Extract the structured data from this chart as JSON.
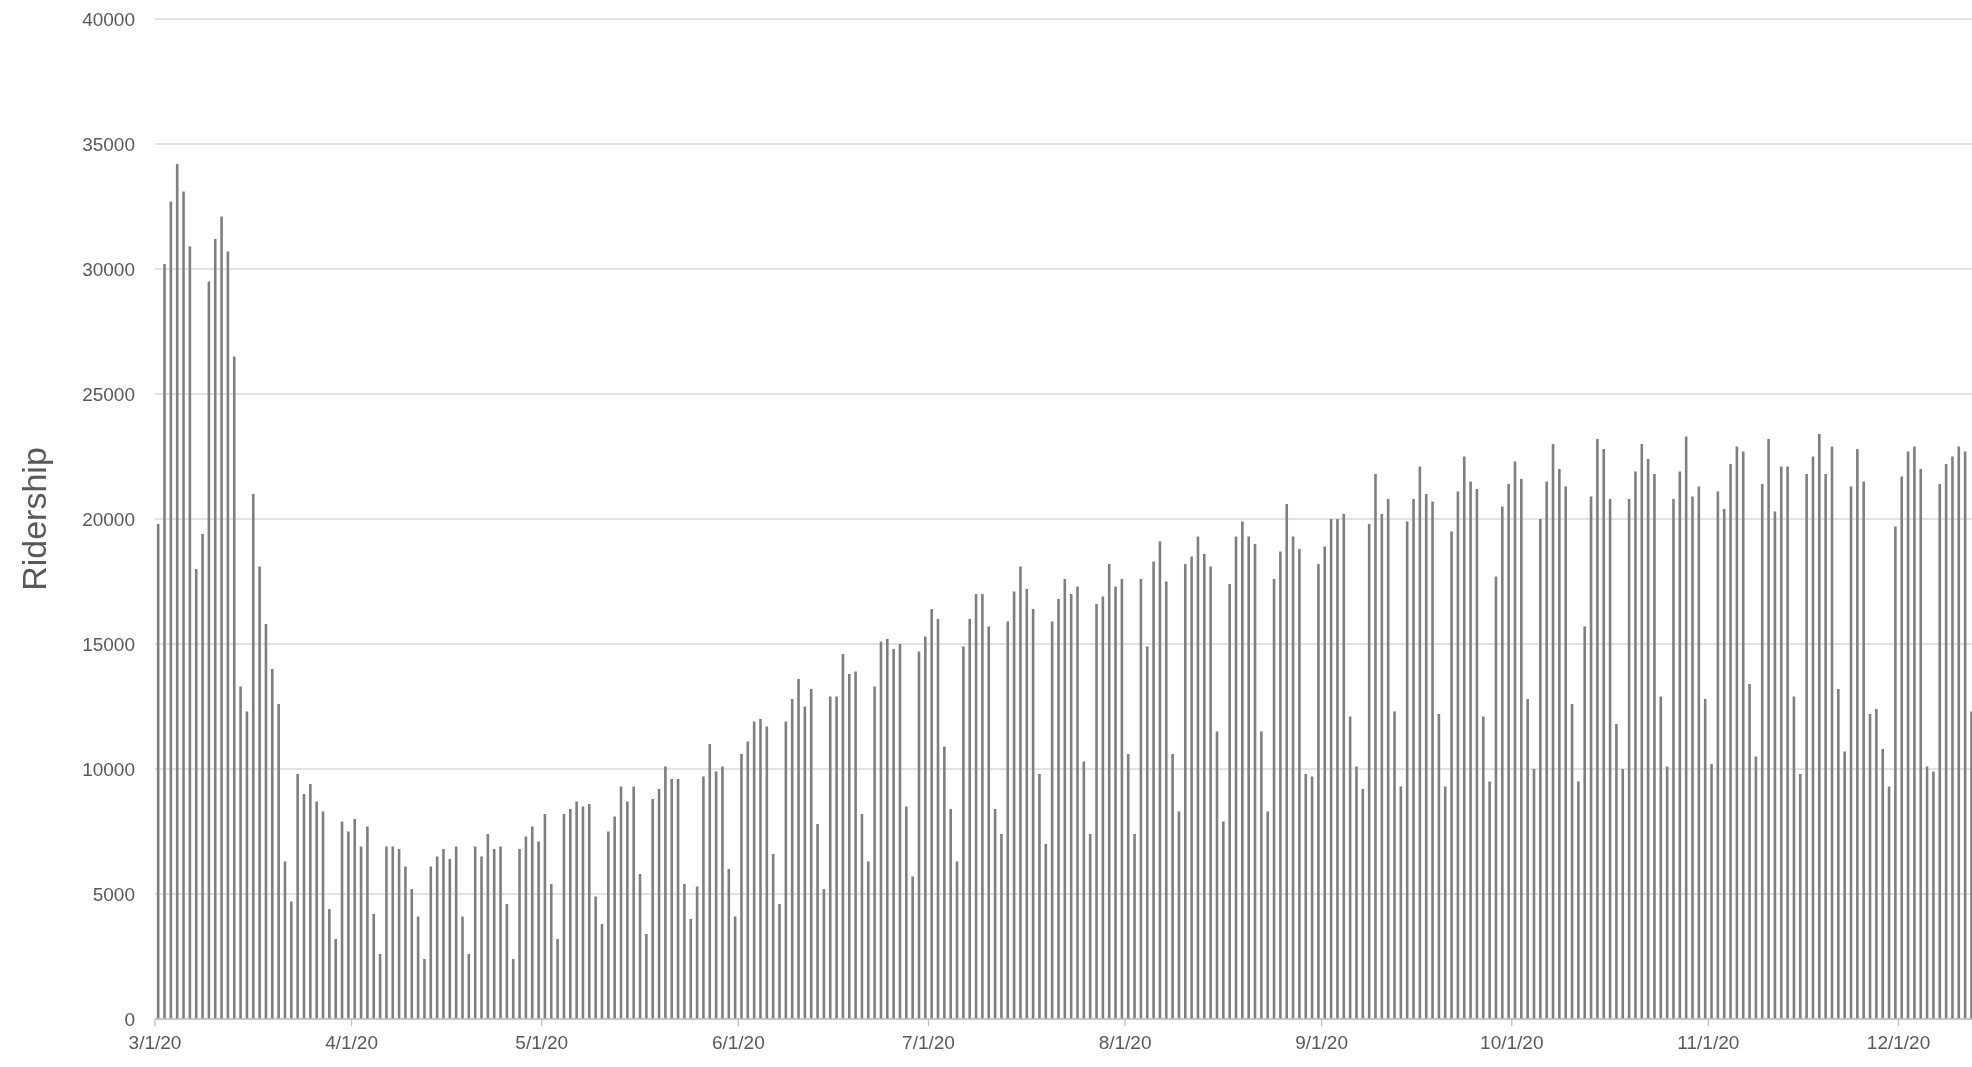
{
  "chart_data": {
    "type": "bar",
    "ylabel": "Ridership",
    "color": "#7f7f7f",
    "grid": "y",
    "xlim": [
      "2020-03-01",
      "2020-12-12T14:00"
    ],
    "ylim": [
      0,
      40000
    ],
    "yticks": [
      0,
      5000,
      10000,
      15000,
      20000,
      25000,
      30000,
      35000,
      40000
    ],
    "xticks": [
      {
        "value": "2020-03-01",
        "label": "3/1/20"
      },
      {
        "value": "2020-04-01",
        "label": "4/1/20"
      },
      {
        "value": "2020-05-01",
        "label": "5/1/20"
      },
      {
        "value": "2020-06-01",
        "label": "6/1/20"
      },
      {
        "value": "2020-07-01",
        "label": "7/1/20"
      },
      {
        "value": "2020-08-01",
        "label": "8/1/20"
      },
      {
        "value": "2020-09-01",
        "label": "9/1/20"
      },
      {
        "value": "2020-10-01",
        "label": "10/1/20"
      },
      {
        "value": "2020-11-01",
        "label": "11/1/20"
      },
      {
        "value": "2020-12-01",
        "label": "12/1/20"
      }
    ],
    "x": [
      "2020-03-01",
      "2020-03-02",
      "2020-03-03",
      "2020-03-04",
      "2020-03-05",
      "2020-03-06",
      "2020-03-07",
      "2020-03-08",
      "2020-03-09",
      "2020-03-10",
      "2020-03-11",
      "2020-03-12",
      "2020-03-13",
      "2020-03-14",
      "2020-03-15",
      "2020-03-16",
      "2020-03-17",
      "2020-03-18",
      "2020-03-19",
      "2020-03-20",
      "2020-03-21",
      "2020-03-22",
      "2020-03-23",
      "2020-03-24",
      "2020-03-25",
      "2020-03-26",
      "2020-03-27",
      "2020-03-28",
      "2020-03-29",
      "2020-03-30",
      "2020-03-31",
      "2020-04-01",
      "2020-04-02",
      "2020-04-03",
      "2020-04-04",
      "2020-04-05",
      "2020-04-06",
      "2020-04-07",
      "2020-04-08",
      "2020-04-09",
      "2020-04-10",
      "2020-04-11",
      "2020-04-12",
      "2020-04-13",
      "2020-04-14",
      "2020-04-15",
      "2020-04-16",
      "2020-04-17",
      "2020-04-18",
      "2020-04-19",
      "2020-04-20",
      "2020-04-21",
      "2020-04-22",
      "2020-04-23",
      "2020-04-24",
      "2020-04-25",
      "2020-04-26",
      "2020-04-27",
      "2020-04-28",
      "2020-04-29",
      "2020-04-30",
      "2020-05-01",
      "2020-05-02",
      "2020-05-03",
      "2020-05-04",
      "2020-05-05",
      "2020-05-06",
      "2020-05-07",
      "2020-05-08",
      "2020-05-09",
      "2020-05-10",
      "2020-05-11",
      "2020-05-12",
      "2020-05-13",
      "2020-05-14",
      "2020-05-15",
      "2020-05-16",
      "2020-05-17",
      "2020-05-18",
      "2020-05-19",
      "2020-05-20",
      "2020-05-21",
      "2020-05-22",
      "2020-05-23",
      "2020-05-24",
      "2020-05-25",
      "2020-05-26",
      "2020-05-27",
      "2020-05-28",
      "2020-05-29",
      "2020-05-30",
      "2020-05-31",
      "2020-06-01",
      "2020-06-02",
      "2020-06-03",
      "2020-06-04",
      "2020-06-05",
      "2020-06-06",
      "2020-06-07",
      "2020-06-08",
      "2020-06-09",
      "2020-06-10",
      "2020-06-11",
      "2020-06-12",
      "2020-06-13",
      "2020-06-14",
      "2020-06-15",
      "2020-06-16",
      "2020-06-17",
      "2020-06-18",
      "2020-06-19",
      "2020-06-20",
      "2020-06-21",
      "2020-06-22",
      "2020-06-23",
      "2020-06-24",
      "2020-06-25",
      "2020-06-26",
      "2020-06-27",
      "2020-06-28",
      "2020-06-29",
      "2020-06-30",
      "2020-07-01",
      "2020-07-02",
      "2020-07-03",
      "2020-07-04",
      "2020-07-05",
      "2020-07-06",
      "2020-07-07",
      "2020-07-08",
      "2020-07-09",
      "2020-07-10",
      "2020-07-11",
      "2020-07-12",
      "2020-07-13",
      "2020-07-14",
      "2020-07-15",
      "2020-07-16",
      "2020-07-17",
      "2020-07-18",
      "2020-07-19",
      "2020-07-20",
      "2020-07-21",
      "2020-07-22",
      "2020-07-23",
      "2020-07-24",
      "2020-07-25",
      "2020-07-26",
      "2020-07-27",
      "2020-07-28",
      "2020-07-29",
      "2020-07-30",
      "2020-07-31",
      "2020-08-01",
      "2020-08-02",
      "2020-08-03",
      "2020-08-04",
      "2020-08-05",
      "2020-08-06",
      "2020-08-07",
      "2020-08-08",
      "2020-08-09",
      "2020-08-10",
      "2020-08-11",
      "2020-08-12",
      "2020-08-13",
      "2020-08-14",
      "2020-08-15",
      "2020-08-16",
      "2020-08-17",
      "2020-08-18",
      "2020-08-19",
      "2020-08-20",
      "2020-08-21",
      "2020-08-22",
      "2020-08-23",
      "2020-08-24",
      "2020-08-25",
      "2020-08-26",
      "2020-08-27",
      "2020-08-28",
      "2020-08-29",
      "2020-08-30",
      "2020-08-31",
      "2020-09-01",
      "2020-09-02",
      "2020-09-03",
      "2020-09-04",
      "2020-09-05",
      "2020-09-06",
      "2020-09-07",
      "2020-09-08",
      "2020-09-09",
      "2020-09-10",
      "2020-09-11",
      "2020-09-12",
      "2020-09-13",
      "2020-09-14",
      "2020-09-15",
      "2020-09-16",
      "2020-09-17",
      "2020-09-18",
      "2020-09-19",
      "2020-09-20",
      "2020-09-21",
      "2020-09-22",
      "2020-09-23",
      "2020-09-24",
      "2020-09-25",
      "2020-09-26",
      "2020-09-27",
      "2020-09-28",
      "2020-09-29",
      "2020-09-30",
      "2020-10-01",
      "2020-10-02",
      "2020-10-03",
      "2020-10-04",
      "2020-10-05",
      "2020-10-06",
      "2020-10-07",
      "2020-10-08",
      "2020-10-09",
      "2020-10-10",
      "2020-10-11",
      "2020-10-12",
      "2020-10-13",
      "2020-10-14",
      "2020-10-15",
      "2020-10-16",
      "2020-10-17",
      "2020-10-18",
      "2020-10-19",
      "2020-10-20",
      "2020-10-21",
      "2020-10-22",
      "2020-10-23",
      "2020-10-24",
      "2020-10-25",
      "2020-10-26",
      "2020-10-27",
      "2020-10-28",
      "2020-10-29",
      "2020-10-30",
      "2020-10-31",
      "2020-11-01",
      "2020-11-02",
      "2020-11-03",
      "2020-11-04",
      "2020-11-05",
      "2020-11-06",
      "2020-11-07",
      "2020-11-08",
      "2020-11-09",
      "2020-11-10",
      "2020-11-11",
      "2020-11-12",
      "2020-11-13",
      "2020-11-14",
      "2020-11-15",
      "2020-11-16",
      "2020-11-17",
      "2020-11-18",
      "2020-11-19",
      "2020-11-20",
      "2020-11-21",
      "2020-11-22",
      "2020-11-23",
      "2020-11-24",
      "2020-11-25",
      "2020-11-26",
      "2020-11-27",
      "2020-11-28",
      "2020-11-29",
      "2020-11-30",
      "2020-12-01",
      "2020-12-02",
      "2020-12-03",
      "2020-12-04",
      "2020-12-05",
      "2020-12-06",
      "2020-12-07",
      "2020-12-08",
      "2020-12-09",
      "2020-12-10",
      "2020-12-11",
      "2020-12-12"
    ],
    "values": [
      19800,
      30200,
      32700,
      34200,
      33100,
      30900,
      18000,
      19400,
      29500,
      31200,
      32100,
      30700,
      26500,
      13300,
      12300,
      21000,
      18100,
      15800,
      14000,
      12600,
      6300,
      4700,
      9800,
      9000,
      9400,
      8700,
      8300,
      4400,
      3200,
      7900,
      7500,
      8000,
      6900,
      7700,
      4200,
      2600,
      6900,
      6900,
      6800,
      6100,
      5200,
      4100,
      2400,
      6100,
      6500,
      6800,
      6400,
      6900,
      4100,
      2600,
      6900,
      6500,
      7400,
      6800,
      6900,
      4600,
      2400,
      6800,
      7300,
      7700,
      7100,
      8200,
      5400,
      3200,
      8200,
      8400,
      8700,
      8500,
      8600,
      4900,
      3800,
      7500,
      8100,
      9300,
      8700,
      9300,
      5800,
      3400,
      8800,
      9200,
      10100,
      9600,
      9600,
      5400,
      4000,
      5300,
      9700,
      11000,
      9900,
      10100,
      6000,
      4100,
      10600,
      11100,
      11900,
      12000,
      11700,
      6600,
      4600,
      11900,
      12800,
      13600,
      12500,
      13200,
      7800,
      5200,
      12900,
      12900,
      14600,
      13800,
      13900,
      8200,
      6300,
      13300,
      15100,
      15200,
      14800,
      15000,
      8500,
      5700,
      14700,
      15300,
      16400,
      16000,
      10900,
      8400,
      6300,
      14900,
      16000,
      17000,
      17000,
      15700,
      8400,
      7400,
      15900,
      17100,
      18100,
      17200,
      16400,
      9800,
      7000,
      15900,
      16800,
      17600,
      17000,
      17300,
      10300,
      7400,
      16600,
      16900,
      18200,
      17300,
      17600,
      10600,
      7400,
      17600,
      14900,
      18300,
      19100,
      17500,
      10600,
      8300,
      18200,
      18500,
      19300,
      18600,
      18100,
      11500,
      7900,
      17400,
      19300,
      19900,
      19300,
      19000,
      11500,
      8300,
      17600,
      18700,
      20600,
      19300,
      18800,
      9800,
      9700,
      18200,
      18900,
      20000,
      20000,
      20200,
      12100,
      10100,
      9200,
      19800,
      21800,
      20200,
      20800,
      12300,
      9300,
      19900,
      20800,
      22100,
      21000,
      20700,
      12200,
      9300,
      19500,
      21100,
      22500,
      21500,
      21200,
      12100,
      9500,
      17700,
      20500,
      21400,
      22300,
      21600,
      12800,
      10000,
      20000,
      21500,
      23000,
      22000,
      21300,
      12600,
      9500,
      15700,
      20900,
      23200,
      22800,
      20800,
      11800,
      10000,
      20800,
      21900,
      23000,
      22400,
      21800,
      12900,
      10100,
      20800,
      21900,
      23300,
      20900,
      21300,
      12800,
      10200,
      21100,
      20400,
      22200,
      22900,
      22700,
      13400,
      10500,
      21400,
      23200,
      20300,
      22100,
      22100,
      12900,
      9800,
      21800,
      22500,
      23400,
      21800,
      22900,
      13200,
      10700,
      21300,
      22800,
      21500,
      12200,
      12400,
      10800,
      9300,
      19700,
      21700,
      22700,
      22900,
      22000,
      10100,
      9900,
      21400,
      22200,
      22500,
      22900,
      22700,
      12300
    ]
  }
}
